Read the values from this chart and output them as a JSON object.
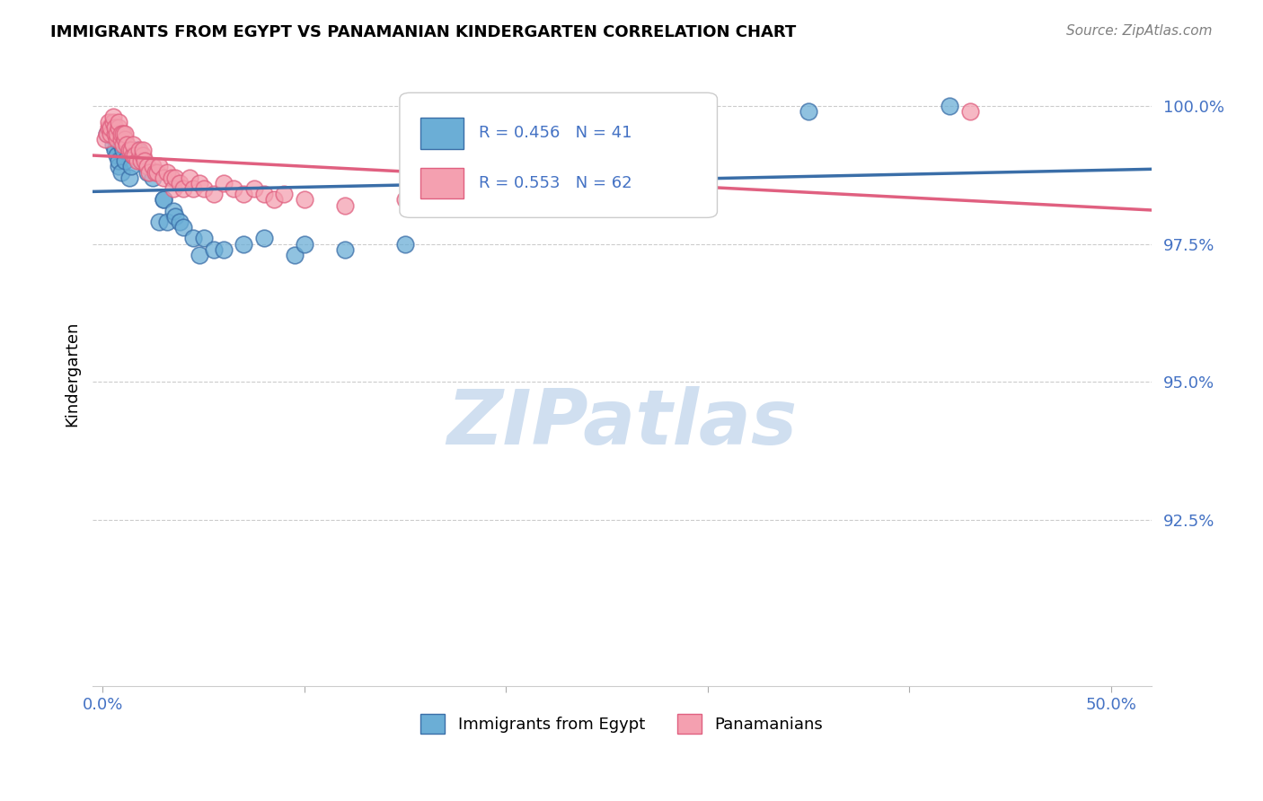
{
  "title": "IMMIGRANTS FROM EGYPT VS PANAMANIAN KINDERGARTEN CORRELATION CHART",
  "source": "Source: ZipAtlas.com",
  "ylabel": "Kindergarten",
  "ylim": [
    89.5,
    100.8
  ],
  "xlim": [
    -0.005,
    0.52
  ],
  "legend_label1": "Immigrants from Egypt",
  "legend_label2": "Panamanians",
  "r1": 0.456,
  "n1": 41,
  "r2": 0.553,
  "n2": 62,
  "color_blue": "#6baed6",
  "color_pink": "#f4a0b0",
  "color_blue_line": "#3a6ea8",
  "color_pink_line": "#e06080",
  "color_blue_text": "#4472c4",
  "watermark_color": "#d0dff0",
  "blue_x": [
    0.002,
    0.004,
    0.005,
    0.006,
    0.006,
    0.007,
    0.008,
    0.008,
    0.009,
    0.009,
    0.01,
    0.011,
    0.013,
    0.014,
    0.015,
    0.015,
    0.017,
    0.02,
    0.022,
    0.025,
    0.028,
    0.03,
    0.03,
    0.032,
    0.035,
    0.036,
    0.038,
    0.04,
    0.045,
    0.048,
    0.05,
    0.055,
    0.06,
    0.07,
    0.08,
    0.095,
    0.1,
    0.12,
    0.15,
    0.35,
    0.42
  ],
  "blue_y": [
    99.5,
    99.6,
    99.3,
    99.4,
    99.2,
    99.1,
    98.9,
    99.0,
    98.8,
    99.3,
    99.2,
    99.0,
    98.7,
    98.9,
    99.1,
    99.2,
    99.2,
    99.0,
    98.8,
    98.7,
    97.9,
    98.3,
    98.3,
    97.9,
    98.1,
    98.0,
    97.9,
    97.8,
    97.6,
    97.3,
    97.6,
    97.4,
    97.4,
    97.5,
    97.6,
    97.3,
    97.5,
    97.4,
    97.5,
    99.9,
    100.0
  ],
  "pink_x": [
    0.001,
    0.002,
    0.003,
    0.003,
    0.004,
    0.004,
    0.005,
    0.005,
    0.006,
    0.006,
    0.007,
    0.007,
    0.008,
    0.008,
    0.009,
    0.009,
    0.01,
    0.01,
    0.011,
    0.011,
    0.012,
    0.013,
    0.014,
    0.015,
    0.015,
    0.016,
    0.017,
    0.018,
    0.019,
    0.02,
    0.02,
    0.021,
    0.022,
    0.023,
    0.025,
    0.026,
    0.027,
    0.028,
    0.03,
    0.032,
    0.034,
    0.035,
    0.036,
    0.038,
    0.04,
    0.043,
    0.045,
    0.048,
    0.05,
    0.055,
    0.06,
    0.065,
    0.07,
    0.075,
    0.08,
    0.085,
    0.09,
    0.1,
    0.12,
    0.15,
    0.2,
    0.43
  ],
  "pink_y": [
    99.4,
    99.5,
    99.6,
    99.7,
    99.5,
    99.6,
    99.7,
    99.8,
    99.5,
    99.6,
    99.4,
    99.5,
    99.6,
    99.7,
    99.4,
    99.5,
    99.3,
    99.5,
    99.4,
    99.5,
    99.3,
    99.2,
    99.2,
    99.1,
    99.3,
    99.1,
    99.0,
    99.2,
    99.0,
    99.1,
    99.2,
    99.0,
    98.9,
    98.8,
    98.9,
    98.8,
    98.8,
    98.9,
    98.7,
    98.8,
    98.7,
    98.5,
    98.7,
    98.6,
    98.5,
    98.7,
    98.5,
    98.6,
    98.5,
    98.4,
    98.6,
    98.5,
    98.4,
    98.5,
    98.4,
    98.3,
    98.4,
    98.3,
    98.2,
    98.3,
    98.5,
    99.9
  ]
}
